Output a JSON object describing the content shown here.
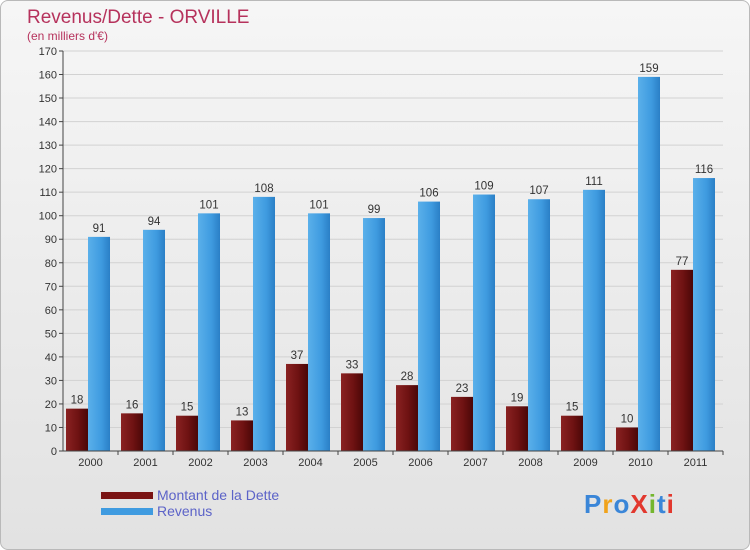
{
  "colors": {
    "dette": "#7a1414",
    "revenus": "#3f9be0",
    "title": "#b6325c",
    "legend_text": "#5c63c8",
    "grid": "#d2d2d2",
    "axis": "#444444"
  },
  "logo": {
    "text": "ProXiti",
    "letter_colors": [
      "#3a86d8",
      "#f0a21a",
      "#3a86d8",
      "#e2382e",
      "#74b62e",
      "#3a86d8",
      "#e2382e"
    ]
  },
  "chart_data": {
    "type": "bar",
    "title": "Revenus/Dette - ORVILLE",
    "subtitle": "(en milliers d'€)",
    "categories": [
      "2000",
      "2001",
      "2002",
      "2003",
      "2004",
      "2005",
      "2006",
      "2007",
      "2008",
      "2009",
      "2010",
      "2011"
    ],
    "series": [
      {
        "name": "Montant de la Dette",
        "values": [
          18,
          16,
          15,
          13,
          37,
          33,
          28,
          23,
          19,
          15,
          10,
          77
        ]
      },
      {
        "name": "Revenus",
        "values": [
          91,
          94,
          101,
          108,
          101,
          99,
          106,
          109,
          107,
          111,
          159,
          116
        ]
      }
    ],
    "ylim": [
      0,
      170
    ],
    "yticks": [
      0,
      10,
      20,
      30,
      40,
      50,
      60,
      70,
      80,
      90,
      100,
      110,
      120,
      130,
      140,
      150,
      160,
      170
    ],
    "grid": true,
    "legend_position": "bottom-left"
  }
}
